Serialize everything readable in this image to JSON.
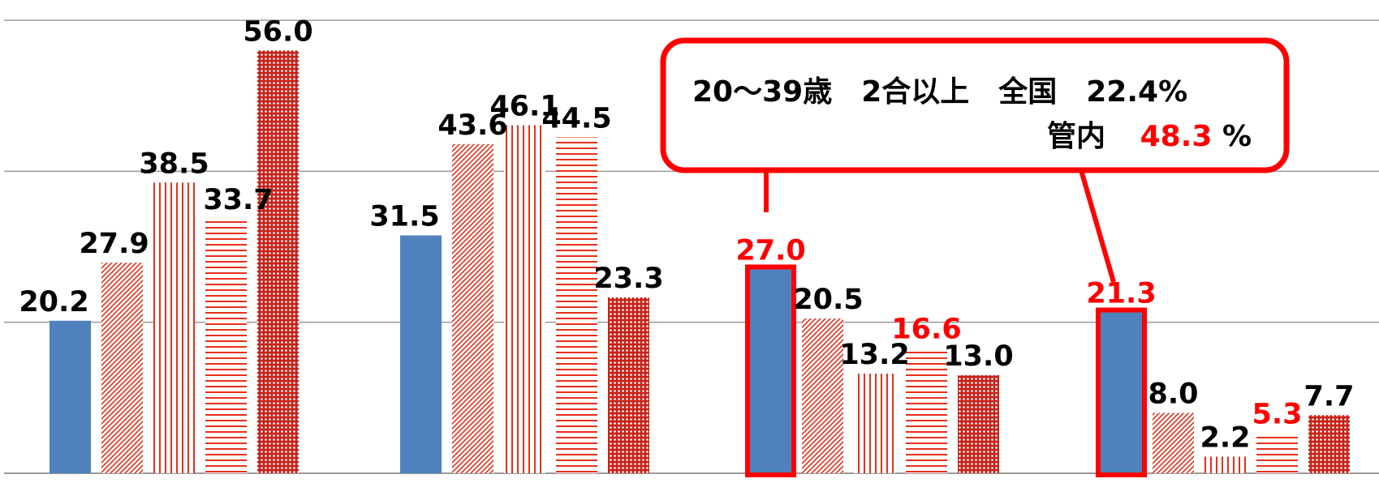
{
  "chart_data": {
    "type": "bar",
    "ylim": [
      0,
      60
    ],
    "grid": true,
    "legend": "none",
    "title": "",
    "xlabel": "",
    "ylabel": "",
    "categories": [
      "",
      "",
      "",
      ""
    ],
    "series": [
      {
        "values": [
          20.2,
          31.5,
          27.0,
          21.3
        ],
        "pattern": "solid",
        "color": "#4f81bd"
      },
      {
        "values": [
          27.9,
          43.6,
          20.5,
          8.0
        ],
        "pattern": "diagonal",
        "color": "#e8301c"
      },
      {
        "values": [
          38.5,
          46.1,
          13.2,
          2.2
        ],
        "pattern": "vertical",
        "color": "#e8301c"
      },
      {
        "values": [
          33.7,
          44.5,
          16.6,
          5.3
        ],
        "pattern": "horizontal",
        "color": "#e8301c"
      },
      {
        "values": [
          56.0,
          23.3,
          13.0,
          7.7
        ],
        "pattern": "dots",
        "color": "#e8301c"
      }
    ],
    "labels": [
      [
        "20.2",
        "27.9",
        "38.5",
        "33.7",
        "56.0"
      ],
      [
        "31.5",
        "43.6",
        "46.1",
        "44.5",
        "23.3"
      ],
      [
        "27.0",
        "20.5",
        "13.2",
        "16.6",
        "13.0"
      ],
      [
        "21.3",
        "8.0",
        "2.2",
        "5.3",
        "7.7"
      ]
    ],
    "highlight_labels": [
      [
        2,
        0
      ],
      [
        2,
        3
      ],
      [
        3,
        0
      ],
      [
        3,
        3
      ]
    ],
    "highlight_bars": [
      [
        2,
        0
      ],
      [
        3,
        0
      ]
    ],
    "annotation": {
      "line1": "20～39歳　2合以上　全国　22.4%",
      "line2_label": "管内",
      "line2_value": "48.3",
      "line2_unit": "%"
    }
  },
  "colors": {
    "blue": "#4f81bd",
    "red": "#e8301c",
    "highlight": "#ff0000",
    "grid": "#9a9a9a",
    "text": "#000000"
  }
}
